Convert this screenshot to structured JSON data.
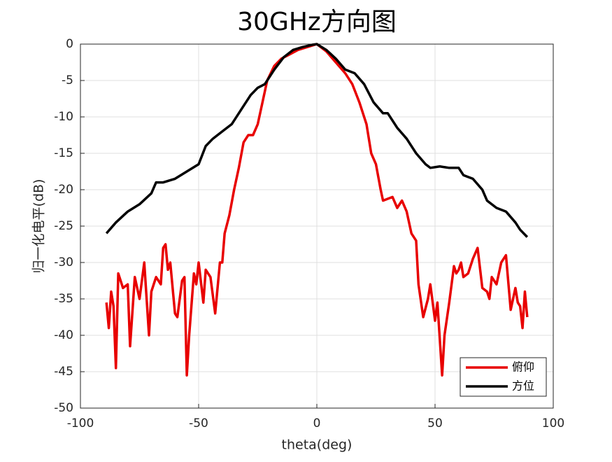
{
  "chart_data": {
    "type": "line",
    "title": "30GHz方向图",
    "x_label": "theta(deg)",
    "y_label": "归一化电平(dB)",
    "xlim": [
      -100,
      100
    ],
    "ylim": [
      -50,
      0
    ],
    "xticks": [
      -100,
      -50,
      0,
      50,
      100
    ],
    "yticks": [
      0,
      -5,
      -10,
      -15,
      -20,
      -25,
      -30,
      -35,
      -40,
      -45,
      -50
    ],
    "grid": true,
    "legend": "southeast",
    "series": [
      {
        "name": "俯仰",
        "color": "#e80000",
        "x": [
          -89,
          -88,
          -87,
          -86,
          -85,
          -84,
          -82,
          -80,
          -79,
          -77,
          -75,
          -73,
          -71,
          -70,
          -68,
          -66,
          -65,
          -64,
          -63,
          -62,
          -60,
          -59,
          -57,
          -56,
          -55,
          -54,
          -52,
          -51,
          -50,
          -48,
          -47,
          -45,
          -43,
          -41,
          -40,
          -39,
          -37,
          -35,
          -33,
          -31,
          -29,
          -27,
          -25,
          -23,
          -21,
          -18,
          -15,
          -12,
          -8,
          -4,
          0,
          4,
          8,
          12,
          15,
          18,
          21,
          23,
          25,
          27,
          28,
          32,
          34,
          36,
          38,
          40,
          42,
          43,
          45,
          47,
          48,
          50,
          51,
          53,
          54,
          56,
          58,
          59,
          60,
          61,
          62,
          64,
          66,
          68,
          70,
          72,
          73,
          74,
          76,
          78,
          80,
          82,
          84,
          85,
          86,
          87,
          88,
          89
        ],
        "values": [
          -35.5,
          -39,
          -34,
          -36,
          -44.5,
          -31.5,
          -33.5,
          -33,
          -41.5,
          -32,
          -35,
          -30,
          -40,
          -34,
          -32,
          -33,
          -28,
          -27.5,
          -31,
          -30,
          -37,
          -37.5,
          -32.5,
          -32,
          -45.5,
          -40,
          -31.5,
          -33,
          -30,
          -35.5,
          -31,
          -32,
          -37,
          -30,
          -30,
          -26,
          -23.5,
          -20,
          -17,
          -13.5,
          -12.5,
          -12.5,
          -11,
          -8,
          -5,
          -3,
          -2,
          -1.5,
          -0.8,
          -0.4,
          0,
          -1,
          -2.5,
          -4,
          -5.5,
          -8,
          -11,
          -15,
          -16.5,
          -20,
          -21.5,
          -21,
          -22.5,
          -21.5,
          -23,
          -26,
          -27,
          -33,
          -37.5,
          -35,
          -33,
          -38,
          -35.5,
          -45.5,
          -40,
          -35.5,
          -30.5,
          -31.5,
          -31,
          -30,
          -32,
          -31.5,
          -29.5,
          -28,
          -33.5,
          -34,
          -35,
          -32,
          -33,
          -30,
          -29,
          -36.5,
          -33.5,
          -35.5,
          -36,
          -39,
          -34,
          -37.5
        ]
      },
      {
        "name": "方位",
        "color": "#000000",
        "x": [
          -89,
          -85,
          -80,
          -75,
          -70,
          -68,
          -65,
          -60,
          -55,
          -50,
          -47,
          -44,
          -40,
          -36,
          -32,
          -28,
          -25,
          -22,
          -18,
          -14,
          -10,
          -6,
          -2,
          0,
          4,
          8,
          12,
          16,
          20,
          24,
          28,
          30,
          34,
          38,
          42,
          46,
          48,
          52,
          56,
          60,
          62,
          66,
          70,
          72,
          76,
          80,
          84,
          86,
          89
        ],
        "values": [
          -26,
          -24.5,
          -23,
          -22,
          -20.5,
          -19,
          -19,
          -18.5,
          -17.5,
          -16.5,
          -14,
          -13,
          -12,
          -11,
          -9,
          -7,
          -6,
          -5.5,
          -3.5,
          -1.8,
          -0.8,
          -0.4,
          -0.1,
          0,
          -0.8,
          -2,
          -3.5,
          -4,
          -5.5,
          -8,
          -9.5,
          -9.5,
          -11.5,
          -13,
          -15,
          -16.5,
          -17,
          -16.8,
          -17,
          -17,
          -18,
          -18.5,
          -20,
          -21.5,
          -22.5,
          -23,
          -24.5,
          -25.5,
          -26.5
        ]
      }
    ]
  }
}
